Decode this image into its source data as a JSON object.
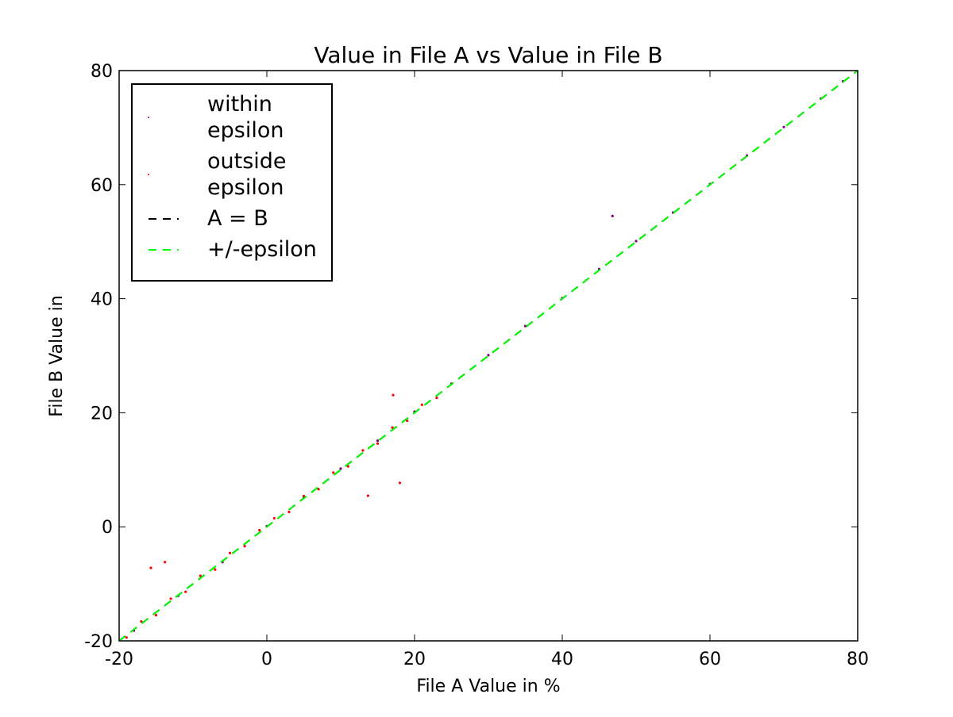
{
  "chart_data": {
    "type": "scatter",
    "title": "Value in File A vs Value in File B",
    "x_label": "File A Value in %",
    "y_label": "File B Value in",
    "xlim": [
      -20,
      80
    ],
    "ylim": [
      -20,
      80
    ],
    "xticks": [
      -20,
      0,
      20,
      40,
      60,
      80
    ],
    "yticks": [
      -20,
      0,
      20,
      40,
      60,
      80
    ],
    "legend": "upper left",
    "series": [
      {
        "name": "within epsilon",
        "type": "scatter",
        "color": "#800080",
        "x": [
          -18,
          -12,
          -6,
          0,
          5,
          10,
          15,
          20,
          25,
          30,
          35,
          40,
          45,
          46.8,
          50,
          55,
          60,
          65,
          70,
          75,
          78
        ],
        "values": [
          -18.2,
          -12.1,
          -6.2,
          0.1,
          5.1,
          10.2,
          15.1,
          20.2,
          25.1,
          30.1,
          35.2,
          40.1,
          45.2,
          54.5,
          50.1,
          55.1,
          60.1,
          65.1,
          70.1,
          75.1,
          78.1
        ]
      },
      {
        "name": "outside epsilon",
        "type": "scatter",
        "color": "#ff0000",
        "x": [
          -19,
          -17,
          -15.7,
          -15,
          -13.8,
          -13,
          -11,
          -9,
          -7,
          -5,
          -3,
          -1,
          1,
          3,
          5,
          7,
          9,
          11,
          13,
          13.7,
          15,
          17,
          17.1,
          18,
          19,
          21,
          23
        ],
        "values": [
          -19.4,
          -16.6,
          -7.2,
          -15.5,
          -6.2,
          -12.6,
          -11.4,
          -8.6,
          -7.5,
          -4.6,
          -3.4,
          -0.6,
          1.5,
          2.6,
          5.4,
          6.6,
          9.5,
          10.6,
          13.4,
          5.45,
          14.6,
          17.4,
          23.1,
          7.7,
          18.6,
          21.4,
          22.6
        ]
      },
      {
        "name": "A = B",
        "type": "line",
        "dash": true,
        "color": "#000000",
        "x": [
          -20,
          80
        ],
        "values": [
          -20,
          80
        ]
      },
      {
        "name": "+/-epsilon",
        "type": "line",
        "dash": true,
        "color": "#00ff00",
        "x": [
          -20,
          80
        ],
        "values": [
          -20,
          80
        ]
      }
    ]
  }
}
